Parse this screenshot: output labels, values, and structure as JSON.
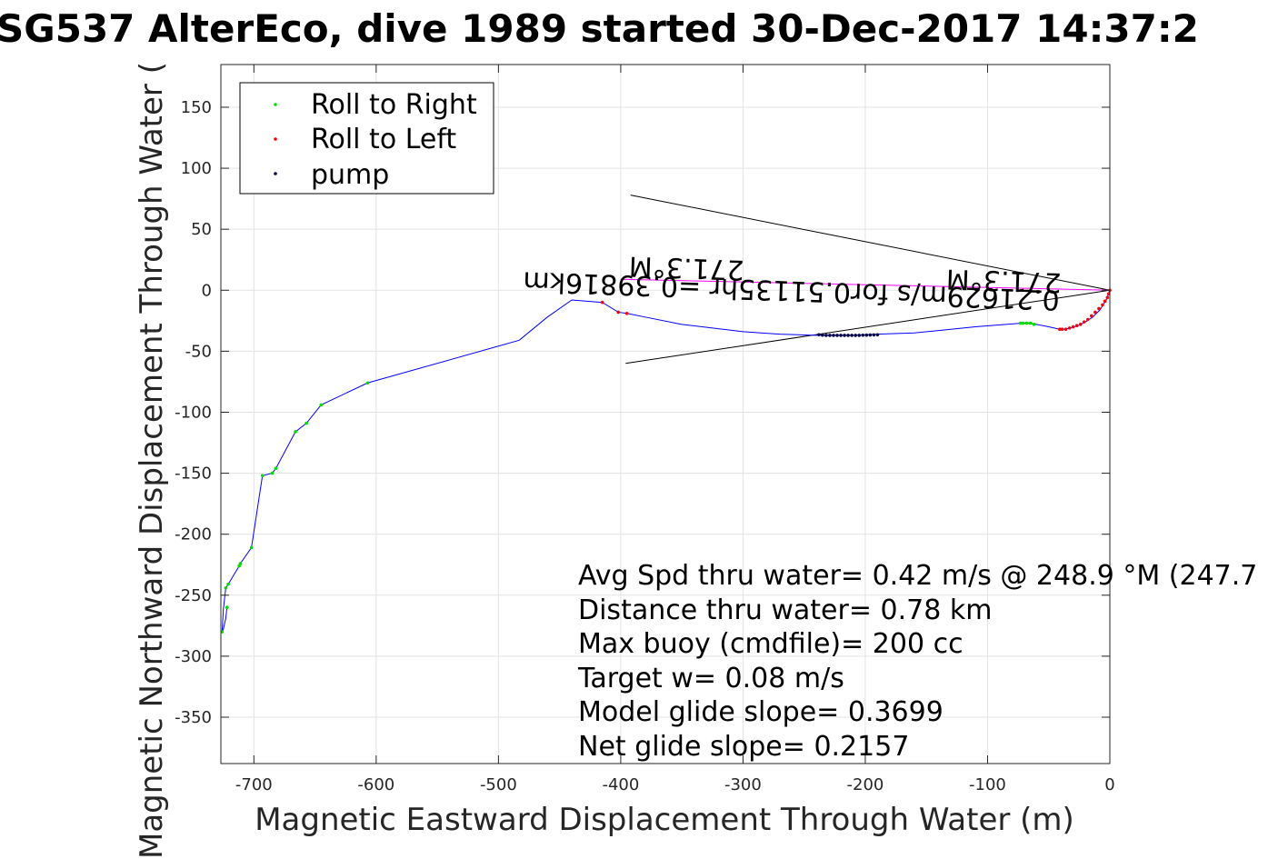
{
  "chart_data": {
    "type": "line",
    "title": "SG537 AlterEco, dive 1989 started 30-Dec-2017 14:37:2",
    "xlabel": "Magnetic Eastward Displacement Through Water (m)",
    "ylabel": "Magnetic Northward Displacement Through Water (",
    "xlim": [
      -727,
      0
    ],
    "ylim": [
      -388,
      185
    ],
    "xticks": [
      -700,
      -600,
      -500,
      -400,
      -300,
      -200,
      -100,
      0
    ],
    "yticks": [
      150,
      100,
      50,
      0,
      -50,
      -100,
      -150,
      -200,
      -250,
      -300,
      -350
    ],
    "grid": true,
    "legend_position": "top-left",
    "legend": [
      "Roll to Right",
      "Roll to Left",
      "pump"
    ],
    "colors": {
      "track": "#0000ff",
      "roll_right": "#00dd00",
      "roll_left": "#ff0000",
      "pump": "#000044",
      "current_line": "#ff00ff",
      "cone": "#000000",
      "grid": "#e3e3e3",
      "axes": "#262626"
    },
    "track": {
      "x": [
        0,
        -3,
        -8,
        -14,
        -20,
        -26,
        -32,
        -38,
        -41,
        -50,
        -60,
        -67,
        -72,
        -110,
        -140,
        -160,
        -190,
        -210,
        -240,
        -270,
        -300,
        -350,
        -380,
        -395,
        -402,
        -415,
        -440,
        -460,
        -483,
        -607,
        -645,
        -657,
        -666,
        -682,
        -685,
        -693,
        -702,
        -711,
        -712,
        -721,
        -723,
        -725,
        -726,
        -725,
        -723,
        -722
      ],
      "y": [
        0,
        -8,
        -16,
        -22,
        -26,
        -29,
        -31,
        -32,
        -32,
        -30,
        -28,
        -27,
        -27,
        -30,
        -33,
        -35,
        -36,
        -37,
        -37,
        -36,
        -34,
        -28,
        -22,
        -19,
        -18,
        -10,
        -8,
        -22,
        -41,
        -76,
        -94,
        -109,
        -116,
        -146,
        -150,
        -152,
        -211,
        -224,
        -226,
        -241,
        -244,
        -262,
        -280,
        -278,
        -269,
        -260
      ]
    },
    "roll_right": {
      "x": [
        -62,
        -65,
        -68,
        -71,
        -73,
        -607,
        -645,
        -657,
        -666,
        -682,
        -685,
        -693,
        -702,
        -711,
        -712,
        -721,
        -723,
        -726,
        -722
      ],
      "y": [
        -28,
        -27,
        -27,
        -27,
        -27,
        -76,
        -94,
        -109,
        -116,
        -146,
        -150,
        -152,
        -211,
        -224,
        -226,
        -241,
        -244,
        -280,
        -260
      ]
    },
    "roll_left": {
      "x": [
        0,
        -1,
        -2,
        -4,
        -6,
        -9,
        -12,
        -15,
        -18,
        -21,
        -24,
        -27,
        -30,
        -33,
        -36,
        -39,
        -41,
        -395,
        -402,
        -415
      ],
      "y": [
        0,
        -3,
        -6,
        -9,
        -12,
        -15,
        -18,
        -21,
        -24,
        -26,
        -28,
        -29,
        -30,
        -31,
        -32,
        -32,
        -32,
        -19,
        -18,
        -10
      ]
    },
    "pump": {
      "x": [
        -190,
        -193,
        -196,
        -199,
        -202,
        -205,
        -208,
        -211,
        -214,
        -217,
        -220,
        -223,
        -226,
        -229,
        -232,
        -235,
        -238
      ],
      "y": [
        -36.5,
        -36.6,
        -36.7,
        -36.8,
        -36.9,
        -37,
        -37,
        -37,
        -37,
        -37,
        -37,
        -37,
        -37,
        -37,
        -37,
        -36.8,
        -36.5
      ]
    },
    "current_line": {
      "x": [
        0,
        -100,
        -200,
        -300,
        -400
      ],
      "y": [
        0,
        2.3,
        4.5,
        6.8,
        9
      ]
    },
    "cone": [
      {
        "x": [
          0,
          -392
        ],
        "y": [
          0,
          78
        ]
      },
      {
        "x": [
          0,
          -396
        ],
        "y": [
          0,
          -60
        ]
      }
    ],
    "annotations": [
      "Avg Spd thru water=  0.42 m/s @ 248.9 °M (247.7",
      "Distance thru water=  0.78 km",
      "Max buoy (cmdfile)= 200 cc",
      "Target w= 0.08 m/s",
      "Model glide slope= 0.3699",
      "Net glide slope= 0.2157"
    ],
    "current_labels": [
      "0.21629m/s for0.51135hr =0.39816km",
      "271.3°M",
      "271.3°M"
    ]
  }
}
